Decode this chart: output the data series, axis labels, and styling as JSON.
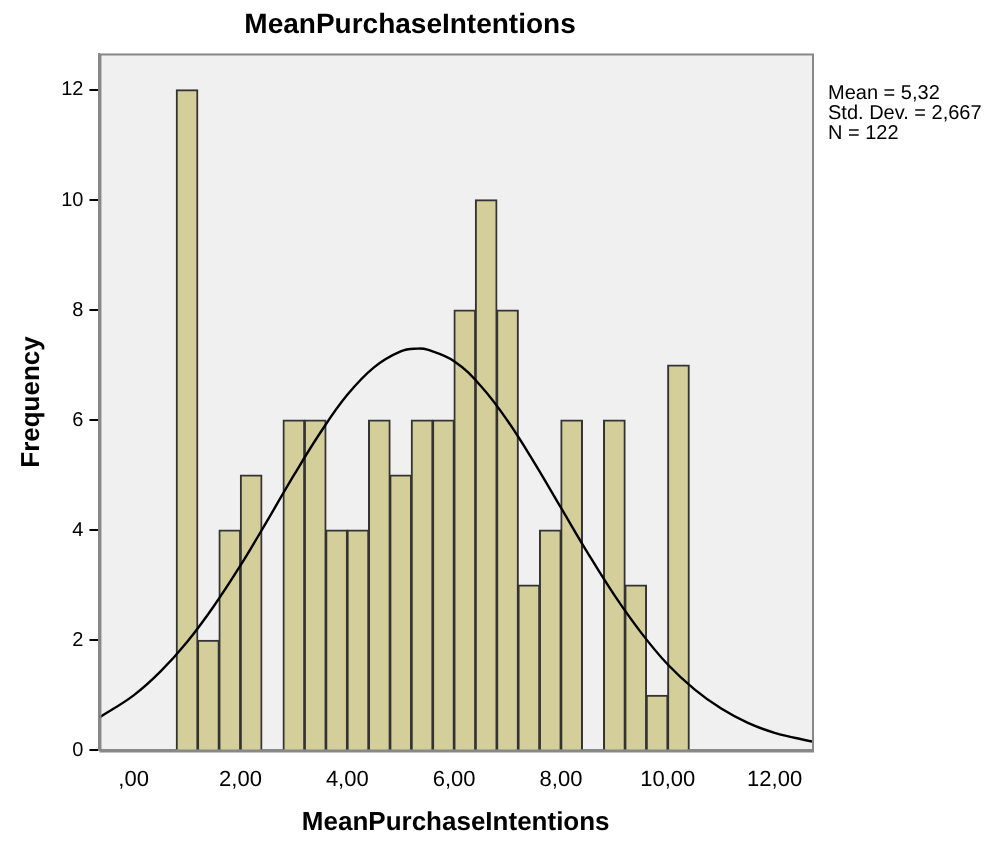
{
  "chart_data": {
    "type": "histogram",
    "title": "MeanPurchaseIntentions",
    "xlabel": "MeanPurchaseIntentions",
    "ylabel": "Frequency",
    "bins": [
      0.8,
      1.2,
      1.6,
      2.0,
      2.4,
      2.8,
      3.2,
      3.6,
      4.0,
      4.4,
      4.8,
      5.2,
      5.6,
      6.0,
      6.4,
      6.8,
      7.2,
      7.6,
      8.0,
      8.4,
      8.8,
      9.2,
      9.6,
      10.0,
      10.4
    ],
    "values": [
      12,
      2,
      4,
      5,
      0,
      6,
      6,
      4,
      4,
      6,
      5,
      6,
      6,
      8,
      10,
      8,
      3,
      4,
      6,
      0,
      6,
      3,
      1,
      7
    ],
    "color": "#d4cf9a",
    "series": [
      {
        "type": "line",
        "color": "#000000",
        "x": [
          -0.64,
          0,
          0.5,
          1,
          1.5,
          2,
          2.5,
          3,
          3.5,
          4,
          4.5,
          5,
          5.32,
          5.5,
          6,
          6.5,
          7,
          7.5,
          8,
          8.5,
          9,
          9.5,
          10,
          10.5,
          11,
          11.5,
          12,
          12.7
        ],
        "values": [
          0.6,
          1.0,
          1.43,
          1.97,
          2.62,
          3.36,
          4.17,
          5.0,
          5.78,
          6.46,
          6.96,
          7.25,
          7.3,
          7.28,
          7.07,
          6.62,
          5.99,
          5.23,
          4.41,
          3.59,
          2.82,
          2.14,
          1.56,
          1.11,
          0.76,
          0.5,
          0.32,
          0.16
        ]
      }
    ],
    "xlim": [
      -0.64,
      12.7
    ],
    "ylim": [
      0,
      12.66
    ],
    "xticks": [
      {
        "value": 0,
        "label": ",00"
      },
      {
        "value": 2,
        "label": "2,00"
      },
      {
        "value": 4,
        "label": "4,00"
      },
      {
        "value": 6,
        "label": "6,00"
      },
      {
        "value": 8,
        "label": "8,00"
      },
      {
        "value": 10,
        "label": "10,00"
      },
      {
        "value": 12,
        "label": "12,00"
      }
    ],
    "yticks": [
      0,
      2,
      4,
      6,
      8,
      10,
      12
    ],
    "grid": false,
    "legend": false,
    "marker": "none",
    "annotations": [
      "Mean = 5,32",
      "Std. Dev. = 2,667",
      "N = 122"
    ]
  }
}
